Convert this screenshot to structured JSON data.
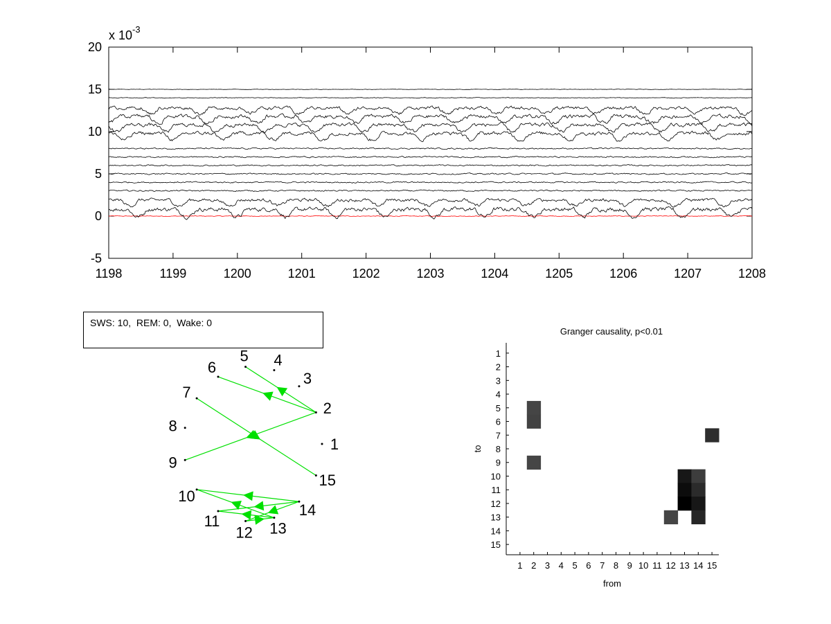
{
  "status_text": "SWS: 10,  REM: 0,  Wake: 0",
  "colors": {
    "trace": "#000000",
    "reference_trace": "#ff0000",
    "edge": "#00e000"
  },
  "chart_data": [
    {
      "type": "line",
      "title": "",
      "xlabel": "",
      "ylabel": "",
      "exponent_label": "x 10",
      "exponent_power": "-3",
      "xlim": [
        1198,
        1208
      ],
      "ylim": [
        -5,
        20
      ],
      "xticks": [
        "1198",
        "1199",
        "1200",
        "1201",
        "1202",
        "1203",
        "1204",
        "1205",
        "1206",
        "1207",
        "1208"
      ],
      "yticks": [
        "20",
        "15",
        "10",
        "5",
        "0",
        "-5"
      ],
      "grid": false,
      "series": [
        {
          "offset": 0.0,
          "amplitude": 0.15,
          "color": "red"
        },
        {
          "offset": 0.8,
          "amplitude": 0.9,
          "color": "black"
        },
        {
          "offset": 1.9,
          "amplitude": 0.7,
          "color": "black"
        },
        {
          "offset": 3.0,
          "amplitude": 0.3,
          "color": "black"
        },
        {
          "offset": 4.0,
          "amplitude": 0.3,
          "color": "black"
        },
        {
          "offset": 5.0,
          "amplitude": 0.3,
          "color": "black"
        },
        {
          "offset": 6.0,
          "amplitude": 0.3,
          "color": "black"
        },
        {
          "offset": 7.0,
          "amplitude": 0.3,
          "color": "black"
        },
        {
          "offset": 8.0,
          "amplitude": 0.3,
          "color": "black"
        },
        {
          "offset": 9.8,
          "amplitude": 0.8,
          "color": "black"
        },
        {
          "offset": 10.8,
          "amplitude": 0.8,
          "color": "black"
        },
        {
          "offset": 11.8,
          "amplitude": 0.8,
          "color": "black"
        },
        {
          "offset": 12.8,
          "amplitude": 0.7,
          "color": "black"
        },
        {
          "offset": 14.0,
          "amplitude": 0.15,
          "color": "black"
        },
        {
          "offset": 15.0,
          "amplitude": 0.1,
          "color": "black"
        }
      ]
    },
    {
      "type": "diagram",
      "nodes": [
        {
          "id": "1",
          "angle": 0
        },
        {
          "id": "2",
          "angle": 24
        },
        {
          "id": "3",
          "angle": 48
        },
        {
          "id": "4",
          "angle": 72
        },
        {
          "id": "5",
          "angle": 96
        },
        {
          "id": "6",
          "angle": 120
        },
        {
          "id": "7",
          "angle": 144
        },
        {
          "id": "8",
          "angle": 168
        },
        {
          "id": "9",
          "angle": 192
        },
        {
          "id": "10",
          "angle": 216
        },
        {
          "id": "11",
          "angle": 240
        },
        {
          "id": "12",
          "angle": 264
        },
        {
          "id": "13",
          "angle": 288
        },
        {
          "id": "14",
          "angle": 312
        },
        {
          "id": "15",
          "angle": 336
        }
      ],
      "edges": [
        {
          "from": "2",
          "to": "5"
        },
        {
          "from": "2",
          "to": "6"
        },
        {
          "from": "2",
          "to": "9"
        },
        {
          "from": "7",
          "to": "15"
        },
        {
          "from": "13",
          "to": "10"
        },
        {
          "from": "14",
          "to": "10"
        },
        {
          "from": "14",
          "to": "11"
        },
        {
          "from": "14",
          "to": "12"
        },
        {
          "from": "13",
          "to": "11"
        },
        {
          "from": "12",
          "to": "13"
        }
      ]
    },
    {
      "type": "heatmap",
      "title": "Granger causality, p<0.01",
      "xlabel": "from",
      "ylabel": "to",
      "x_labels": [
        "1",
        "2",
        "3",
        "4",
        "5",
        "6",
        "7",
        "8",
        "9",
        "10",
        "11",
        "12",
        "13",
        "14",
        "15"
      ],
      "y_labels": [
        "1",
        "2",
        "3",
        "4",
        "5",
        "6",
        "7",
        "8",
        "9",
        "10",
        "11",
        "12",
        "13",
        "14",
        "15"
      ],
      "cells": [
        {
          "from": 2,
          "to": 5,
          "value": 0.55
        },
        {
          "from": 2,
          "to": 6,
          "value": 0.57
        },
        {
          "from": 2,
          "to": 9,
          "value": 0.55
        },
        {
          "from": 15,
          "to": 7,
          "value": 0.7
        },
        {
          "from": 13,
          "to": 10,
          "value": 0.85
        },
        {
          "from": 13,
          "to": 11,
          "value": 0.92
        },
        {
          "from": 13,
          "to": 12,
          "value": 1.0
        },
        {
          "from": 14,
          "to": 10,
          "value": 0.6
        },
        {
          "from": 14,
          "to": 11,
          "value": 0.72
        },
        {
          "from": 14,
          "to": 12,
          "value": 0.85
        },
        {
          "from": 14,
          "to": 13,
          "value": 0.75
        },
        {
          "from": 12,
          "to": 13,
          "value": 0.55
        }
      ]
    }
  ]
}
